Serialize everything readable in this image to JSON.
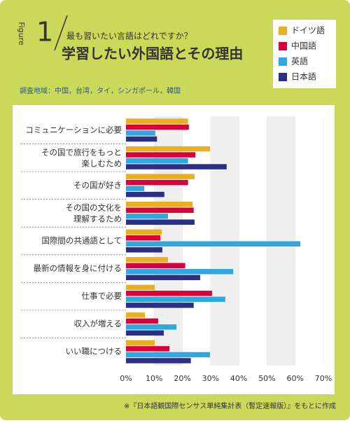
{
  "chart_data": {
    "type": "bar",
    "orientation": "horizontal",
    "figure_label": "Figure",
    "figure_number": "1",
    "subtitle": "最も習いたい言語はどれですか？",
    "title": "学習したい外国語とその理由",
    "note": "調査地域：中国，台湾，タイ，シンガポール，韓国",
    "source": "※『日本語観国際センサス単純集計表（暫定速報版）』をもとに作成",
    "categories": [
      "コミュニケーションに必要",
      "その国で旅行をもっと\n楽しむため",
      "その国が好き",
      "その国の文化を\n理解するため",
      "国際間の共通語として",
      "最新の情報を身に付ける",
      "仕事で必要",
      "収入が増える",
      "いい職につける"
    ],
    "series": [
      {
        "name": "ドイツ語",
        "color": "#e8b021",
        "values": [
          22,
          29.8,
          24.3,
          23.6,
          12.7,
          14.9,
          10.2,
          6.7,
          10.2
        ]
      },
      {
        "name": "中国語",
        "color": "#d6003c",
        "values": [
          22.3,
          24.6,
          22,
          24,
          12.2,
          21,
          30.5,
          11.4,
          15.4
        ]
      },
      {
        "name": "英語",
        "color": "#2fa8e0",
        "values": [
          10.4,
          22,
          6.5,
          14.9,
          61.8,
          38,
          35.2,
          17.9,
          29.8
        ]
      },
      {
        "name": "日本語",
        "color": "#2b2f86",
        "values": [
          11,
          35.7,
          13.6,
          24.3,
          12.9,
          26.3,
          24,
          13.4,
          23
        ]
      }
    ],
    "xlim": [
      0,
      70
    ],
    "xticks": [
      {
        "value": 0,
        "label": "0%"
      },
      {
        "value": 10,
        "label": "10%"
      },
      {
        "value": 20,
        "label": "20%"
      },
      {
        "value": 30,
        "label": "30%"
      },
      {
        "value": 40,
        "label": "40%"
      },
      {
        "value": 50,
        "label": "50%"
      },
      {
        "value": 60,
        "label": "60%"
      },
      {
        "value": 70,
        "label": "70%"
      }
    ],
    "legend": "top-right",
    "grid": "bands"
  }
}
